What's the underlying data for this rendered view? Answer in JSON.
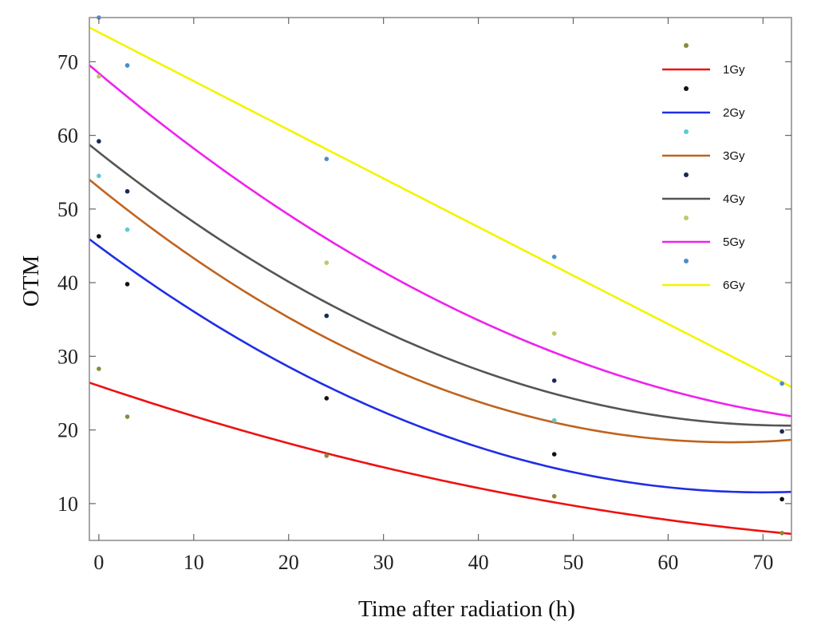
{
  "chart_data": {
    "type": "line",
    "title": "",
    "xlabel": "Time after radiation (h)",
    "ylabel": "OTM",
    "xlim": [
      -1,
      73
    ],
    "ylim": [
      5,
      76
    ],
    "xticks": [
      0,
      10,
      20,
      30,
      40,
      50,
      60,
      70
    ],
    "yticks": [
      10,
      20,
      30,
      40,
      50,
      60,
      70
    ],
    "grid": false,
    "legend_position": "top-right",
    "series": [
      {
        "name": "1Gy",
        "color": "#ee1111",
        "marker_color": "#8a8a3a",
        "fit": {
          "x": [
            0,
            24,
            48,
            72
          ],
          "y": [
            26.0,
            16.8,
            10.2,
            6.0
          ]
        },
        "points": {
          "x": [
            0,
            3,
            24,
            48,
            72
          ],
          "y": [
            28.3,
            21.8,
            16.5,
            11.0,
            6.0
          ]
        }
      },
      {
        "name": "2Gy",
        "color": "#1f2ee6",
        "marker_color": "#111111",
        "fit": {
          "x": [
            0,
            24,
            48,
            72
          ],
          "y": [
            45.0,
            25.8,
            15.0,
            11.5
          ]
        },
        "points": {
          "x": [
            0,
            3,
            24,
            48,
            72
          ],
          "y": [
            46.3,
            39.8,
            24.3,
            16.7,
            10.6
          ]
        }
      },
      {
        "name": "3Gy",
        "color": "#c0631f",
        "marker_color": "#5cc8d8",
        "fit": {
          "x": [
            0,
            24,
            48,
            72
          ],
          "y": [
            53.0,
            32.3,
            21.2,
            18.5
          ]
        },
        "points": {
          "x": [
            0,
            3,
            24,
            48,
            72
          ],
          "y": [
            54.5,
            47.2,
            35.5,
            21.3,
            19.8
          ]
        }
      },
      {
        "name": "4Gy",
        "color": "#555555",
        "marker_color": "#1a2a55",
        "fit": {
          "x": [
            0,
            24,
            48,
            72
          ],
          "y": [
            57.8,
            37.0,
            25.2,
            20.5
          ]
        },
        "points": {
          "x": [
            0,
            3,
            24,
            48,
            72
          ],
          "y": [
            59.2,
            52.4,
            35.5,
            26.7,
            19.8
          ]
        }
      },
      {
        "name": "5Gy",
        "color": "#ee22ee",
        "marker_color": "#b8cc6a",
        "fit": {
          "x": [
            0,
            24,
            48,
            72
          ],
          "y": [
            68.5,
            45.8,
            30.7,
            22.0
          ]
        },
        "points": {
          "x": [
            0,
            3,
            24,
            48,
            72
          ],
          "y": [
            68.0,
            69.5,
            42.7,
            33.1,
            26.3
          ]
        }
      },
      {
        "name": "6Gy",
        "color": "#f4f400",
        "marker_color": "#4a8ec8",
        "fit": {
          "x": [
            0,
            24,
            48,
            72
          ],
          "y": [
            74.0,
            58.1,
            42.3,
            26.5
          ]
        },
        "points": {
          "x": [
            0,
            3,
            24,
            48,
            72
          ],
          "y": [
            76.0,
            69.5,
            56.8,
            43.5,
            26.3
          ]
        }
      }
    ]
  }
}
